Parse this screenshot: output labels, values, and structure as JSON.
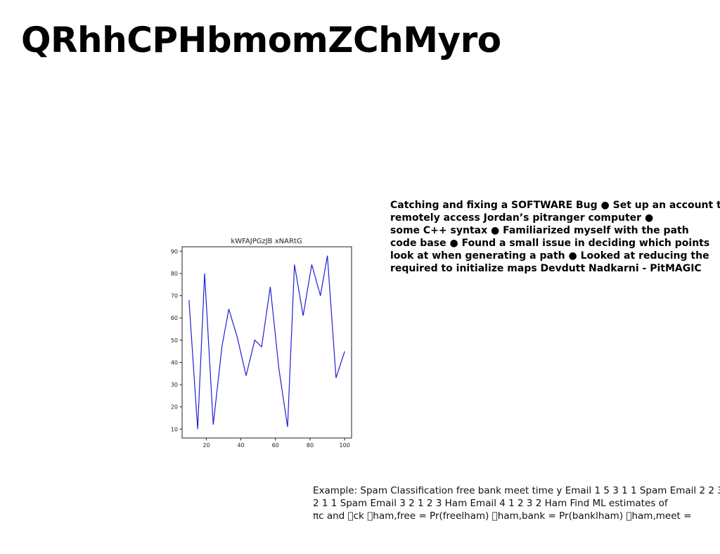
{
  "slide": {
    "title": "QRhhCPHbmomZChMyro"
  },
  "bullets": {
    "lines": [
      "Catching and fixing a SOFTWARE Bug ● Set up an account to",
      "remotely access Jordan’s pitranger computer ●",
      "some C++ syntax ● Familiarized myself with the path",
      "code base ● Found a small issue in deciding which points",
      "look at when generating a path ● Looked at reducing the",
      "required to initialize maps Devdutt Nadkarni - PitMAGIC"
    ]
  },
  "example": {
    "lines": [
      "Example: Spam Classification free bank meet time y Email 1 5 3 1 1 Spam Email 2 2 3",
      "2 1 1 Spam Email 3 2 1 2 3 Ham Email 4 1 2 3 2 Ham Find ML estimates of",
      "πc and \u0000ck \u0000ham,free = Pr(freelham) \u0000ham,bank = Pr(banklham) \u0000ham,meet ="
    ]
  },
  "chart_data": {
    "type": "line",
    "title": "kWFAJPGzJB xNARtG",
    "xlabel": "",
    "ylabel": "",
    "xlim": [
      6,
      104
    ],
    "ylim": [
      6,
      92
    ],
    "xticks": [
      20,
      40,
      60,
      80,
      100
    ],
    "yticks": [
      10,
      20,
      30,
      40,
      50,
      60,
      70,
      80,
      90
    ],
    "grid": false,
    "series": [
      {
        "color": "#1f1fd6",
        "x": [
          10,
          15,
          19,
          24,
          29,
          33,
          38,
          43,
          48,
          52,
          57,
          62,
          67,
          71,
          76,
          81,
          86,
          90,
          95,
          100
        ],
        "y": [
          68,
          10,
          80,
          12,
          47,
          64,
          51,
          34,
          50,
          47,
          74,
          37,
          11,
          84,
          61,
          84,
          70,
          88,
          33,
          45
        ]
      }
    ]
  }
}
